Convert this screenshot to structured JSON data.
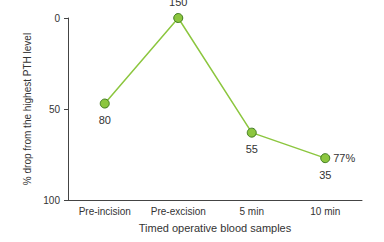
{
  "chart_data": {
    "type": "line",
    "x_label": "Timed operative blood samples",
    "y_label": "% drop from the highest PTH level",
    "categories": [
      "Pre-incision",
      "Pre-excision",
      "5 min",
      "10 min"
    ],
    "values": [
      47,
      0,
      63,
      77
    ],
    "pth_levels": [
      80,
      150,
      55,
      35
    ],
    "annotations": [
      {
        "text": "77%",
        "category": "10 min",
        "value": 77
      }
    ],
    "color": "#8cc63f",
    "marker": "circle",
    "ylim": [
      0,
      100
    ],
    "yticks": [
      0,
      50,
      100
    ],
    "grid": false
  }
}
